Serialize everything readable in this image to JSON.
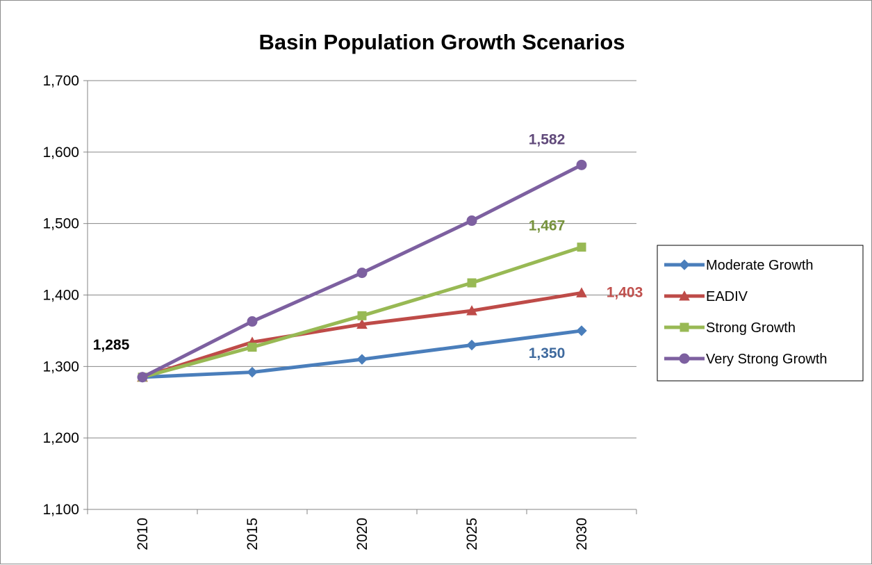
{
  "chart_data": {
    "type": "line",
    "title": "Basin Population Growth Scenarios",
    "xlabel": "",
    "ylabel": "",
    "x": [
      "2010",
      "2015",
      "2020",
      "2025",
      "2030"
    ],
    "ylim": [
      1100,
      1700
    ],
    "yticks": [
      1100,
      1200,
      1300,
      1400,
      1500,
      1600,
      1700
    ],
    "ytick_labels": [
      "1,100",
      "1,200",
      "1,300",
      "1,400",
      "1,500",
      "1,600",
      "1,700"
    ],
    "grid": "horizontal",
    "legend_position": "right",
    "series": [
      {
        "name": "Moderate Growth",
        "color": "#4a7ebb",
        "marker": "diamond",
        "values": [
          1285,
          1292,
          1310,
          1330,
          1350
        ]
      },
      {
        "name": "EADIV",
        "color": "#be4b48",
        "marker": "triangle",
        "values": [
          1285,
          1334,
          1359,
          1378,
          1403
        ]
      },
      {
        "name": "Strong Growth",
        "color": "#98b954",
        "marker": "square",
        "values": [
          1285,
          1327,
          1371,
          1417,
          1467
        ]
      },
      {
        "name": "Very Strong Growth",
        "color": "#7d60a0",
        "marker": "circle",
        "values": [
          1285,
          1363,
          1431,
          1504,
          1582
        ]
      }
    ],
    "annotations": [
      {
        "text": "1,285",
        "series": "Moderate Growth",
        "x": "2010",
        "y": 1285,
        "color": "#000000"
      },
      {
        "text": "1,350",
        "series": "Moderate Growth",
        "x": "2030",
        "y": 1350,
        "color": "#3f6a9e"
      },
      {
        "text": "1,403",
        "series": "EADIV",
        "x": "2030",
        "y": 1403,
        "color": "#c0504d"
      },
      {
        "text": "1,467",
        "series": "Strong Growth",
        "x": "2030",
        "y": 1467,
        "color": "#76923c"
      },
      {
        "text": "1,582",
        "series": "Very Strong Growth",
        "x": "2030",
        "y": 1582,
        "color": "#60497a"
      }
    ]
  }
}
